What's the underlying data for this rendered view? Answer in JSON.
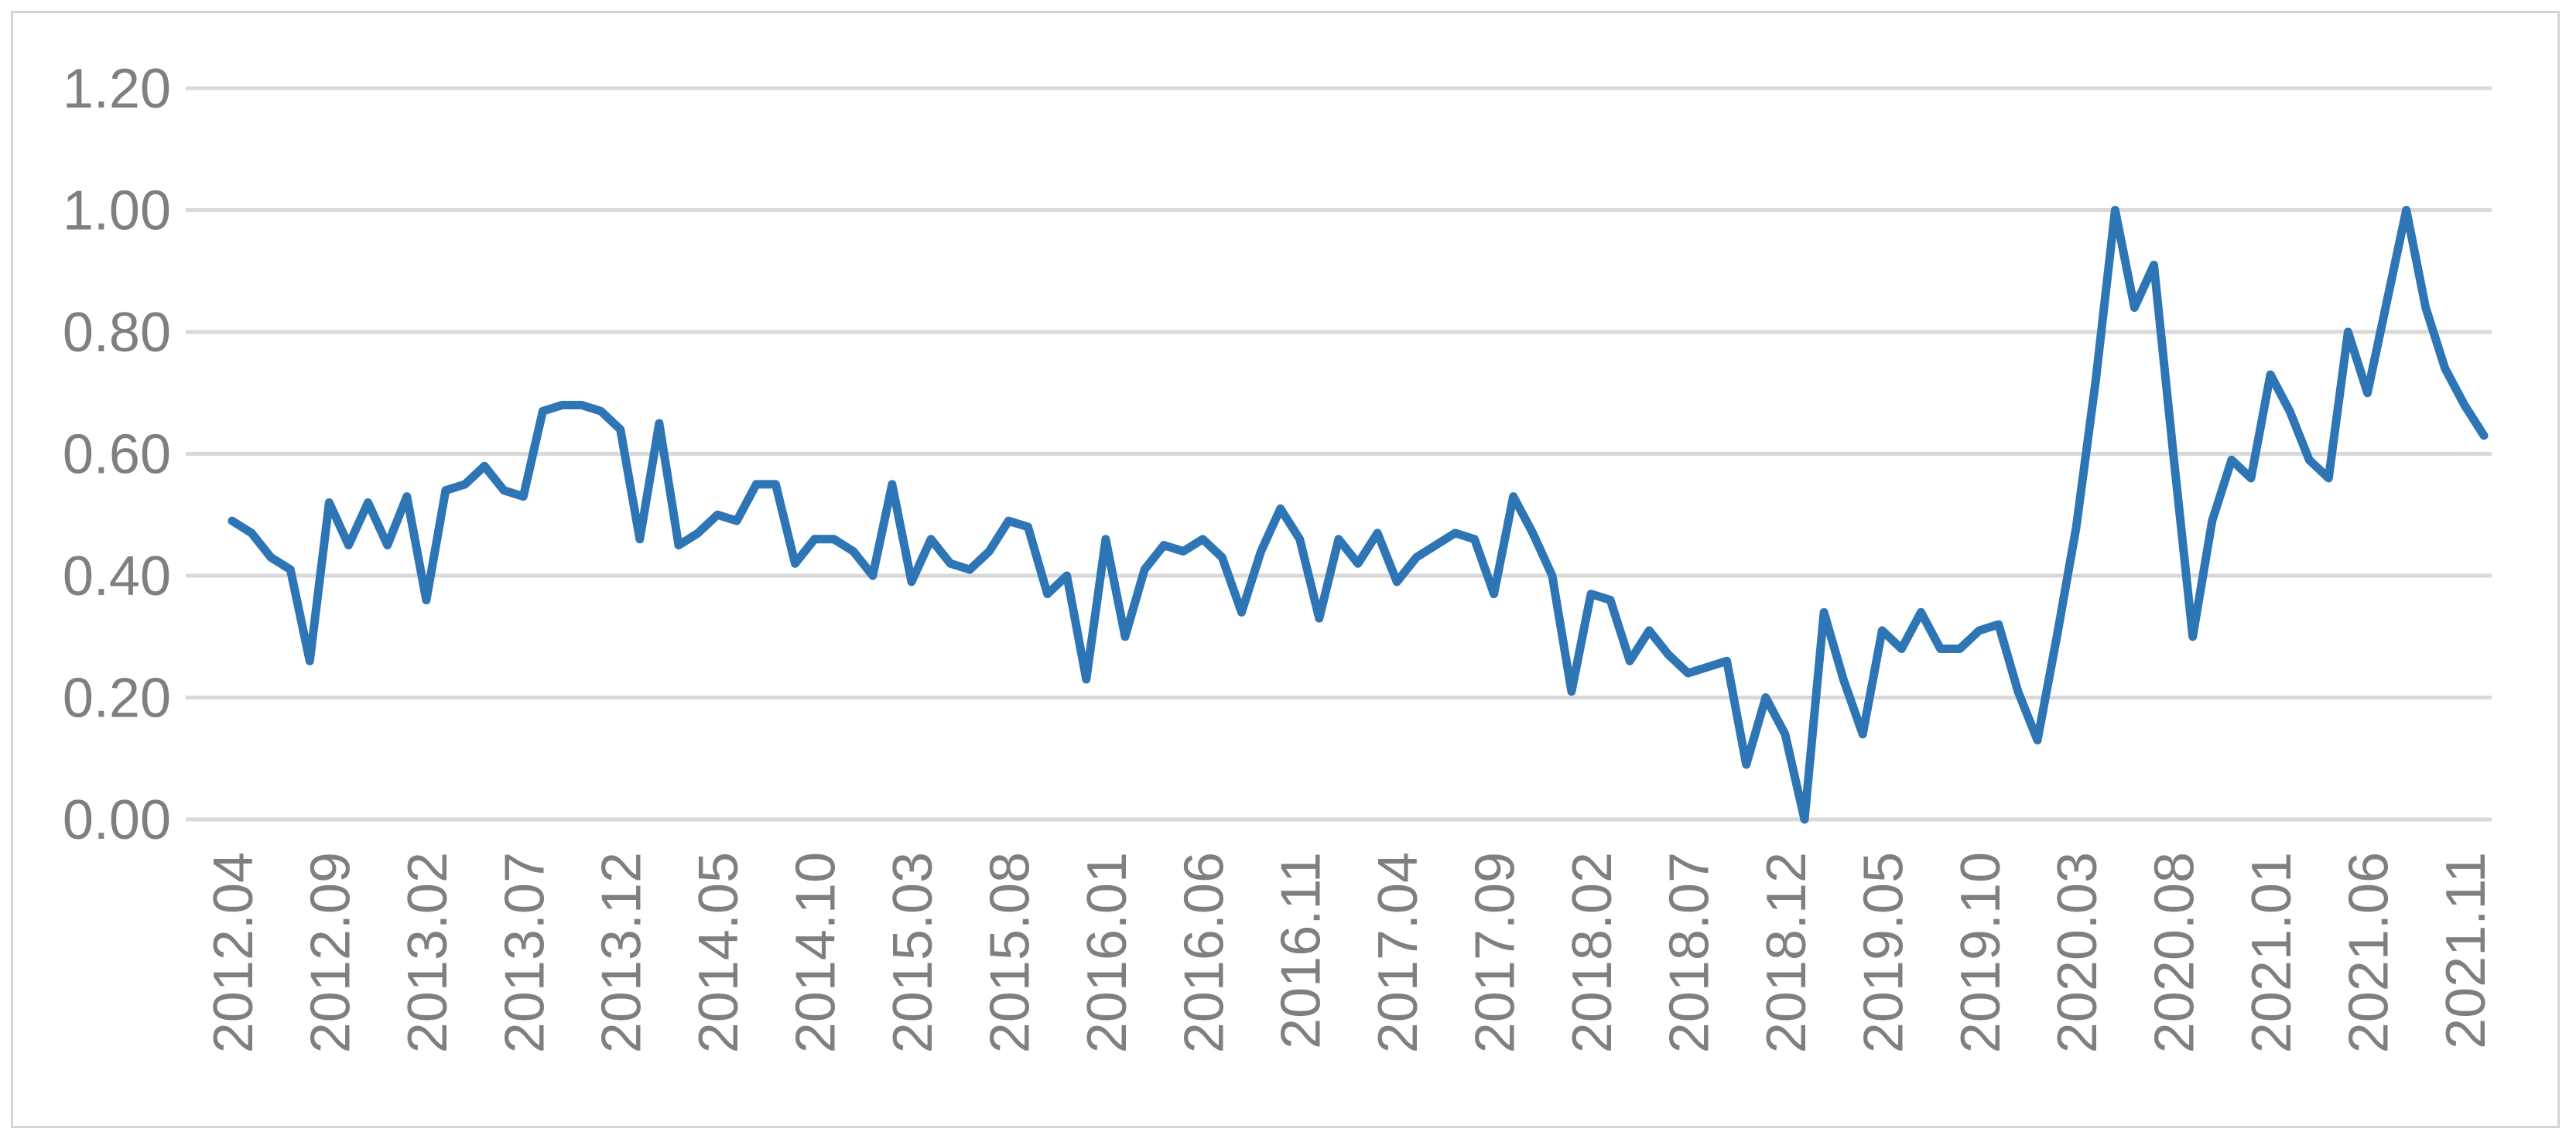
{
  "chart_data": {
    "type": "line",
    "title": "",
    "xlabel": "",
    "ylabel": "",
    "legend": "none",
    "grid": true,
    "ylim": [
      0.0,
      1.2
    ],
    "y_tick_labels": [
      "0.00",
      "0.20",
      "0.40",
      "0.60",
      "0.80",
      "1.00",
      "1.20"
    ],
    "x_tick_every": 5,
    "x": [
      "2012.04",
      "2012.05",
      "2012.06",
      "2012.07",
      "2012.08",
      "2012.09",
      "2012.10",
      "2012.11",
      "2012.12",
      "2013.01",
      "2013.02",
      "2013.03",
      "2013.04",
      "2013.05",
      "2013.06",
      "2013.07",
      "2013.08",
      "2013.09",
      "2013.10",
      "2013.11",
      "2013.12",
      "2014.01",
      "2014.02",
      "2014.03",
      "2014.04",
      "2014.05",
      "2014.06",
      "2014.07",
      "2014.08",
      "2014.09",
      "2014.10",
      "2014.11",
      "2014.12",
      "2015.01",
      "2015.02",
      "2015.03",
      "2015.04",
      "2015.05",
      "2015.06",
      "2015.07",
      "2015.08",
      "2015.09",
      "2015.10",
      "2015.11",
      "2015.12",
      "2016.01",
      "2016.02",
      "2016.03",
      "2016.04",
      "2016.05",
      "2016.06",
      "2016.07",
      "2016.08",
      "2016.09",
      "2016.10",
      "2016.11",
      "2016.12",
      "2017.01",
      "2017.02",
      "2017.03",
      "2017.04",
      "2017.05",
      "2017.06",
      "2017.07",
      "2017.08",
      "2017.09",
      "2017.10",
      "2017.11",
      "2017.12",
      "2018.01",
      "2018.02",
      "2018.03",
      "2018.04",
      "2018.05",
      "2018.06",
      "2018.07",
      "2018.08",
      "2018.09",
      "2018.10",
      "2018.11",
      "2018.12",
      "2019.01",
      "2019.02",
      "2019.03",
      "2019.04",
      "2019.05",
      "2019.06",
      "2019.07",
      "2019.08",
      "2019.09",
      "2019.10",
      "2019.11",
      "2019.12",
      "2020.01",
      "2020.02",
      "2020.03",
      "2020.04",
      "2020.05",
      "2020.06",
      "2020.07",
      "2020.08",
      "2020.09",
      "2020.10",
      "2020.11",
      "2020.12",
      "2021.01",
      "2021.02",
      "2021.03",
      "2021.04",
      "2021.05",
      "2021.06",
      "2021.07",
      "2021.08",
      "2021.09",
      "2021.10",
      "2021.11",
      "2021.12"
    ],
    "values": [
      0.49,
      0.47,
      0.43,
      0.41,
      0.26,
      0.52,
      0.45,
      0.52,
      0.45,
      0.53,
      0.36,
      0.54,
      0.55,
      0.58,
      0.54,
      0.53,
      0.67,
      0.68,
      0.68,
      0.67,
      0.64,
      0.46,
      0.65,
      0.45,
      0.47,
      0.5,
      0.49,
      0.55,
      0.55,
      0.42,
      0.46,
      0.46,
      0.44,
      0.4,
      0.55,
      0.39,
      0.46,
      0.42,
      0.41,
      0.44,
      0.49,
      0.48,
      0.37,
      0.4,
      0.23,
      0.46,
      0.3,
      0.41,
      0.45,
      0.44,
      0.46,
      0.43,
      0.34,
      0.44,
      0.51,
      0.46,
      0.33,
      0.46,
      0.42,
      0.47,
      0.39,
      0.43,
      0.45,
      0.47,
      0.46,
      0.37,
      0.53,
      0.47,
      0.4,
      0.21,
      0.37,
      0.36,
      0.26,
      0.31,
      0.27,
      0.24,
      0.25,
      0.26,
      0.09,
      0.2,
      0.14,
      0.0,
      0.34,
      0.23,
      0.14,
      0.31,
      0.28,
      0.34,
      0.28,
      0.28,
      0.31,
      0.32,
      0.21,
      0.13,
      0.3,
      0.48,
      0.72,
      1.0,
      0.84,
      0.91,
      0.6,
      0.3,
      0.49,
      0.59,
      0.56,
      0.73,
      0.67,
      0.59,
      0.56,
      0.8,
      0.7,
      0.85,
      1.0,
      0.84,
      0.74,
      0.68,
      0.63
    ],
    "colors": {
      "line": "#2E75B6",
      "grid": "#D9D9D9",
      "tick_text": "#7F7F7F",
      "frame_border": "#D2D5D8",
      "background": "#FFFFFF"
    }
  }
}
